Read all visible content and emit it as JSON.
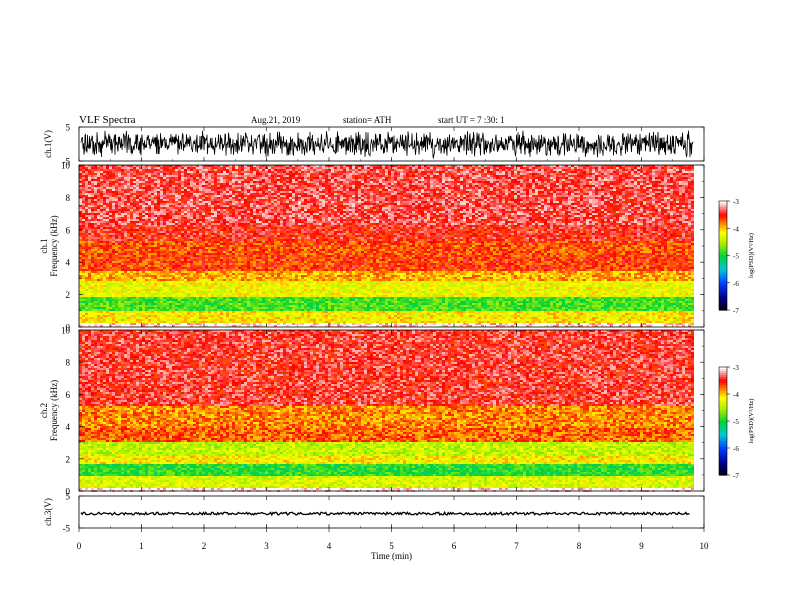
{
  "header": {
    "title": "VLF  Spectra",
    "date": "Aug.21, 2019",
    "station": "station= ATH",
    "start": "start  UT  =   7  :30: 1"
  },
  "chart_data": [
    {
      "type": "line",
      "ylabel": "ch.1(V)",
      "ylim": [
        -5,
        5
      ],
      "yticks": [
        "5",
        "-5"
      ],
      "xlim": [
        0,
        10
      ],
      "data_end_min": 9.83,
      "color": "#000000",
      "signal": "dense noise waveform filling roughly -4 to 4 V"
    },
    {
      "type": "heatmap",
      "ylabel": "ch.1\nFrequency  (kHz)",
      "ylim": [
        0,
        10
      ],
      "yticks": [
        "0",
        "2",
        "4",
        "6",
        "8",
        "10"
      ],
      "xlim": [
        0,
        10
      ],
      "data_end_min": 9.83,
      "colorbar": {
        "label": "log(PSD)(V²/Hz)",
        "range": [
          -7,
          -3
        ],
        "ticks": [
          "-3",
          "-4",
          "-5",
          "-6",
          "-7"
        ]
      },
      "bands": [
        {
          "f": [
            0,
            0.3
          ],
          "level": -3.0
        },
        {
          "f": [
            0.3,
            1.0
          ],
          "level": -4.1
        },
        {
          "f": [
            1.0,
            1.9
          ],
          "level": -4.8
        },
        {
          "f": [
            1.9,
            2.2
          ],
          "level": -4.2
        },
        {
          "f": [
            2.2,
            2.9
          ],
          "level": -4.2
        },
        {
          "f": [
            2.9,
            3.5
          ],
          "level": -3.9
        },
        {
          "f": [
            3.5,
            4.5
          ],
          "level": -3.6
        },
        {
          "f": [
            4.5,
            5.4
          ],
          "level": -3.65
        },
        {
          "f": [
            5.4,
            6.4
          ],
          "level": -3.45
        },
        {
          "f": [
            6.4,
            10.0
          ],
          "level": -3.35
        }
      ]
    },
    {
      "type": "heatmap",
      "ylabel": "ch.2\nFrequency  (kHz)",
      "ylim": [
        0,
        10
      ],
      "yticks": [
        "0",
        "2",
        "4",
        "6",
        "8",
        "10"
      ],
      "xlim": [
        0,
        10
      ],
      "data_end_min": 9.83,
      "colorbar": {
        "label": "log(PSD)(V²/Hz)",
        "range": [
          -7,
          -3
        ],
        "ticks": [
          "-3",
          "-4",
          "-5",
          "-6",
          "-7"
        ]
      },
      "bands": [
        {
          "f": [
            0,
            0.3
          ],
          "level": -3.0
        },
        {
          "f": [
            0.3,
            1.0
          ],
          "level": -4.3
        },
        {
          "f": [
            1.0,
            1.8
          ],
          "level": -4.9
        },
        {
          "f": [
            1.8,
            2.2
          ],
          "level": -4.1
        },
        {
          "f": [
            2.2,
            3.1
          ],
          "level": -4.4
        },
        {
          "f": [
            3.1,
            4.0
          ],
          "level": -3.7
        },
        {
          "f": [
            4.0,
            5.3
          ],
          "level": -3.8
        },
        {
          "f": [
            5.3,
            6.0
          ],
          "level": -3.4
        },
        {
          "f": [
            6.0,
            10.0
          ],
          "level": -3.4
        }
      ]
    },
    {
      "type": "line",
      "ylabel": "ch.3(V)",
      "ylim": [
        -5,
        5
      ],
      "yticks": [
        "5",
        "-5"
      ],
      "xlim": [
        0,
        10
      ],
      "data_end_min": 9.83,
      "level": -0.5,
      "color": "#000000"
    }
  ],
  "xaxis": {
    "label": "Time  (min)",
    "ticks": [
      "0",
      "1",
      "2",
      "3",
      "4",
      "5",
      "6",
      "7",
      "8",
      "9",
      "10"
    ]
  }
}
